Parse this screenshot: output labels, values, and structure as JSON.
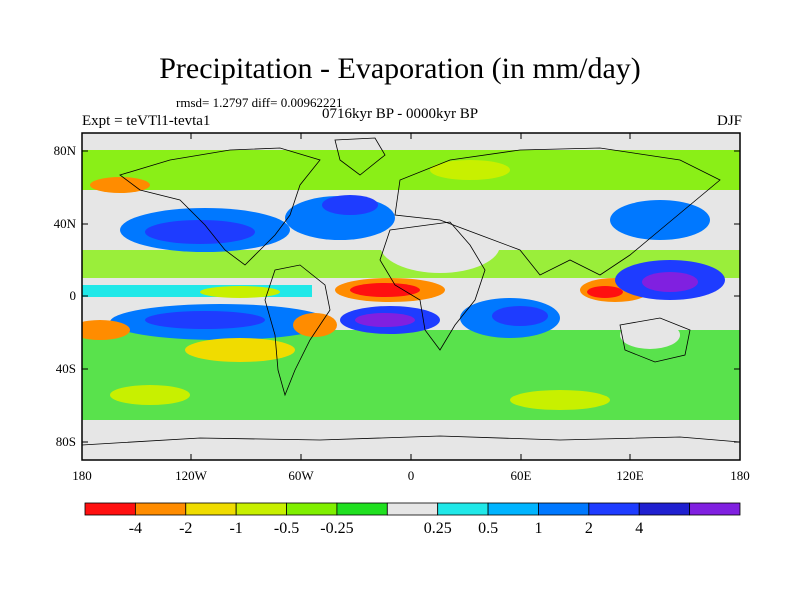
{
  "title": "Precipitation - Evaporation (in mm/day)",
  "stats": "rmsd= 1.2797 diff= 0.00962221",
  "experiment": "Expt = teVTl1-tevta1",
  "period": "0716kyr BP - 0000kyr BP",
  "season": "DJF",
  "lat_ticks": [
    "80N",
    "40N",
    "0",
    "40S",
    "80S"
  ],
  "lon_ticks": [
    "180",
    "120W",
    "60W",
    "0",
    "60E",
    "120E",
    "180"
  ],
  "colorbar": {
    "colors": [
      "#ff1010",
      "#ff8c00",
      "#f0dc00",
      "#c8f000",
      "#80f000",
      "#20e020",
      "#e6e6e6",
      "#20e8e8",
      "#00b4ff",
      "#0078ff",
      "#1e3cff",
      "#2020d0",
      "#8020e0"
    ],
    "labels": [
      "-4",
      "-2",
      "-1",
      "-0.5",
      "-0.25",
      "0.25",
      "0.5",
      "1",
      "2",
      "4"
    ]
  }
}
